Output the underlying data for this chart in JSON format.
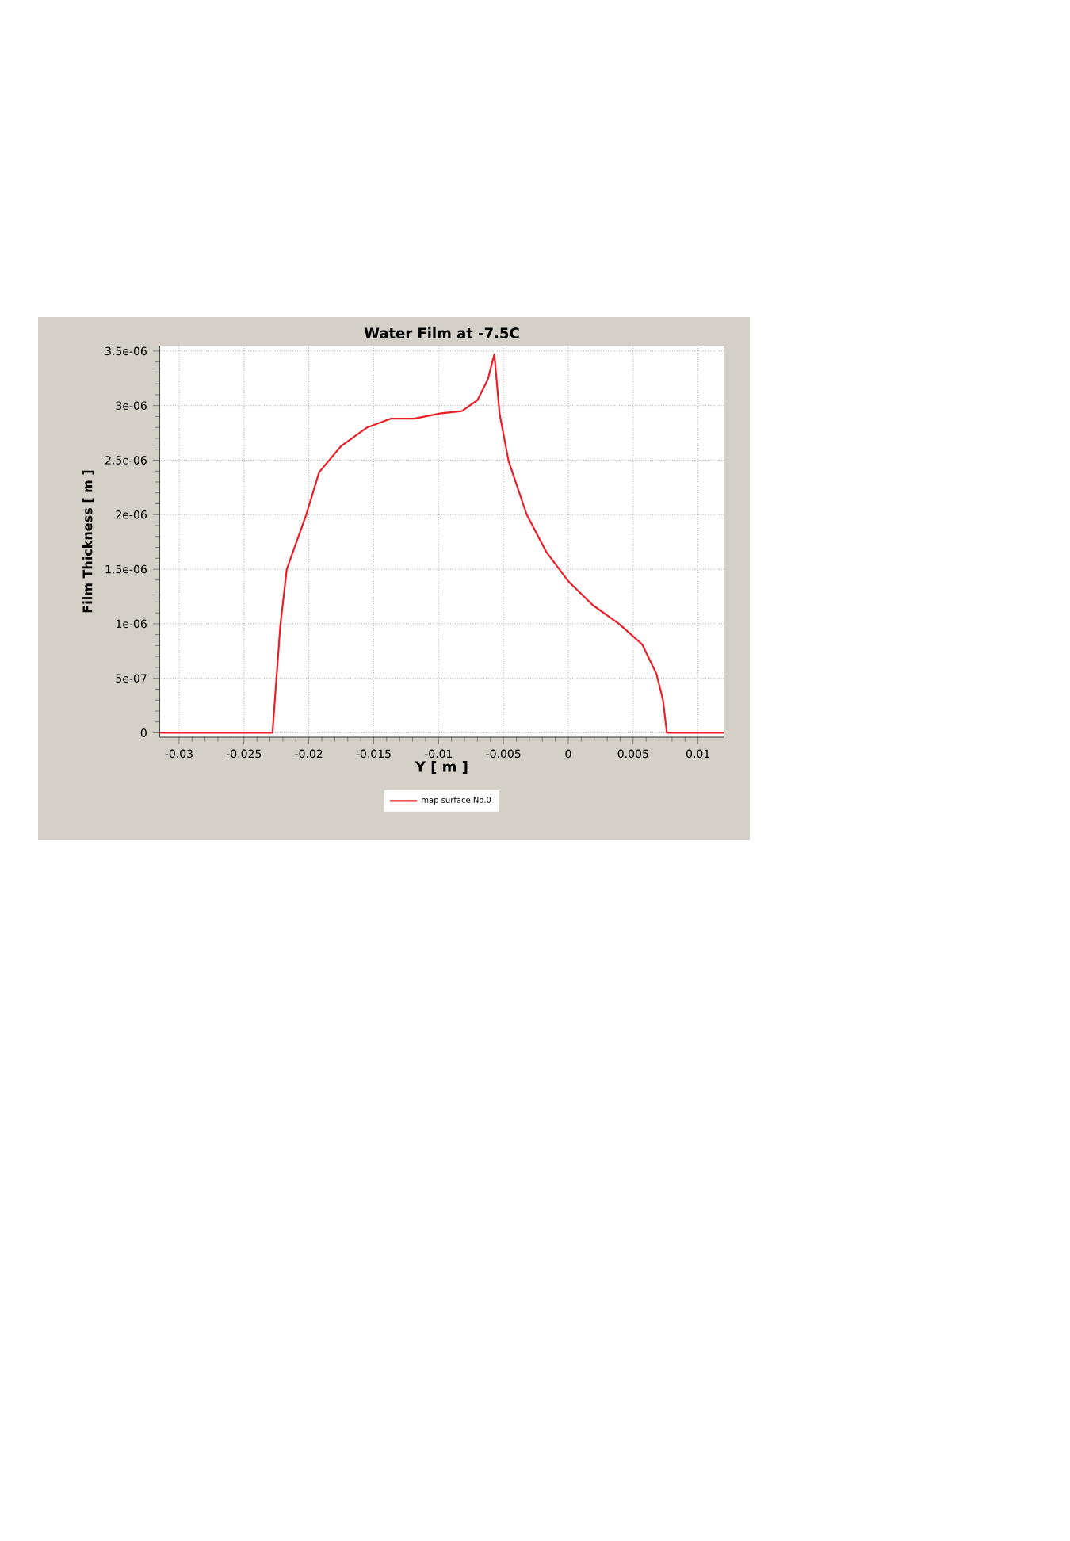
{
  "chart_data": {
    "type": "line",
    "title": "Water Film at -7.5C",
    "xlabel": "Y [ m ]",
    "ylabel": "Film Thickness [ m ]",
    "xlim": [
      -0.0315,
      0.012
    ],
    "ylim": [
      -4e-08,
      3.55e-06
    ],
    "xticks": [
      -0.03,
      -0.025,
      -0.02,
      -0.015,
      -0.01,
      -0.005,
      0,
      0.005,
      0.01
    ],
    "yticks": [
      0,
      {
        "value": 5e-07,
        "label": "5e-07"
      },
      {
        "value": 1e-06,
        "label": "1e-06"
      },
      {
        "value": 1.5e-06,
        "label": "1.5e-06"
      },
      {
        "value": 2e-06,
        "label": "2e-06"
      },
      {
        "value": 2.5e-06,
        "label": "2.5e-06"
      },
      {
        "value": 3e-06,
        "label": "3e-06"
      },
      {
        "value": 3.5e-06,
        "label": "3.5e-06"
      }
    ],
    "grid": true,
    "legend": "bottom",
    "marker": "none",
    "line_style": "solid",
    "series": [
      {
        "name": "map surface No.0",
        "color": "#ee1c25",
        "x": [
          -0.0315,
          -0.0228,
          -0.0225,
          -0.0222,
          -0.0217,
          -0.0202,
          -0.0192,
          -0.0175,
          -0.0155,
          -0.0137,
          -0.0119,
          -0.0098,
          -0.0082,
          -0.007,
          -0.0062,
          -0.0057,
          -0.0053,
          -0.0046,
          -0.0032,
          -0.0017,
          0,
          0.0019,
          0.0039,
          0.0057,
          0.0068,
          0.0073,
          0.0076,
          0.012
        ],
        "values": [
          0,
          0,
          4.9e-07,
          9.8e-07,
          1.5e-06,
          2e-06,
          2.39e-06,
          2.63e-06,
          2.8e-06,
          2.88e-06,
          2.88e-06,
          2.93e-06,
          2.95e-06,
          3.05e-06,
          3.24e-06,
          3.47e-06,
          2.93e-06,
          2.49e-06,
          2e-06,
          1.66e-06,
          1.39e-06,
          1.17e-06,
          1e-06,
          8.1e-07,
          5.4e-07,
          3e-07,
          0,
          0
        ]
      }
    ]
  }
}
